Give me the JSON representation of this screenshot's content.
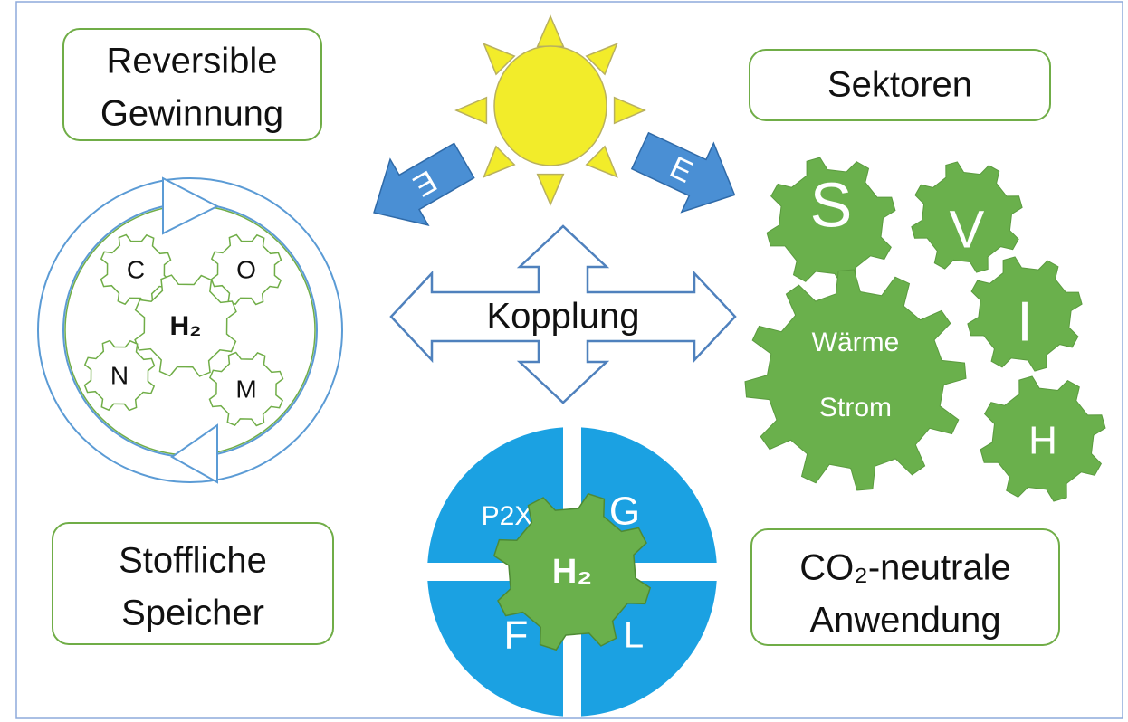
{
  "boxes": [
    {
      "lines": [
        "Reversible",
        "Gewinnung"
      ]
    },
    {
      "lines": [
        "Sektoren"
      ]
    },
    {
      "lines": [
        "Stoffliche",
        "Speicher"
      ]
    },
    {
      "lines": [
        "CO₂-neutrale",
        "Anwendung"
      ]
    }
  ],
  "sun": {
    "arrows": [
      "E",
      "E"
    ]
  },
  "center": {
    "label": "Kopplung"
  },
  "cycle": {
    "gears": [
      "C",
      "O",
      "H₂",
      "N",
      "M"
    ]
  },
  "sectors": {
    "gears": [
      "S",
      "V",
      "I",
      "Wärme",
      "Strom",
      "H"
    ]
  },
  "quadrants": {
    "labels": [
      "P2X",
      "G",
      "F",
      "L"
    ],
    "center": "H₂"
  }
}
